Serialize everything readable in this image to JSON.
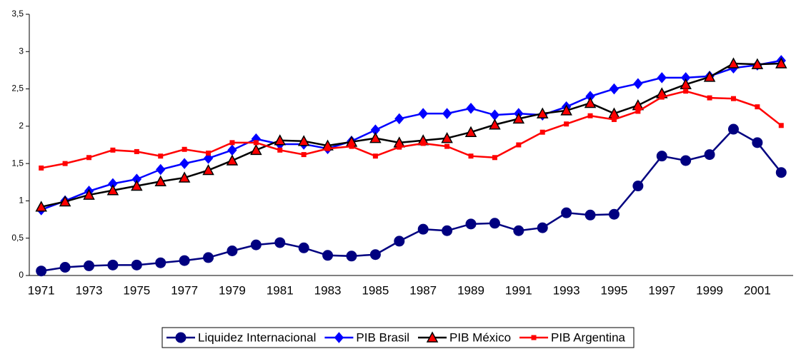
{
  "chart_data": {
    "type": "line",
    "categories": [
      "1971",
      null,
      "1973",
      null,
      "1975",
      null,
      "1977",
      null,
      "1979",
      null,
      "1981",
      null,
      "1983",
      null,
      "1985",
      null,
      "1987",
      null,
      "1989",
      null,
      "1991",
      null,
      "1993",
      null,
      "1995",
      null,
      "1997",
      null,
      "1999",
      null,
      "2001",
      null
    ],
    "series": [
      {
        "name": "Liquidez Internacional",
        "color": "#000080",
        "marker": "circle",
        "marker_fill": "#000080",
        "values": [
          0.06,
          0.11,
          0.13,
          0.14,
          0.14,
          0.17,
          0.2,
          0.24,
          0.33,
          0.41,
          0.44,
          0.37,
          0.27,
          0.26,
          0.28,
          0.46,
          0.62,
          0.6,
          0.69,
          0.7,
          0.6,
          0.64,
          0.84,
          0.81,
          0.82,
          1.2,
          1.6,
          1.54,
          1.62,
          1.96,
          1.78,
          1.38
        ]
      },
      {
        "name": "PIB Brasil",
        "color": "#0000ff",
        "marker": "diamond",
        "marker_fill": "#0000ff",
        "values": [
          0.88,
          1.0,
          1.13,
          1.23,
          1.29,
          1.42,
          1.5,
          1.57,
          1.68,
          1.83,
          1.76,
          1.76,
          1.7,
          1.8,
          1.95,
          2.1,
          2.17,
          2.17,
          2.24,
          2.15,
          2.17,
          2.15,
          2.26,
          2.4,
          2.5,
          2.57,
          2.65,
          2.65,
          2.67,
          2.78,
          2.82,
          2.88
        ]
      },
      {
        "name": "PIB México",
        "color": "#000000",
        "marker": "triangle",
        "marker_fill": "#ff0000",
        "values": [
          0.92,
          0.99,
          1.08,
          1.14,
          1.2,
          1.26,
          1.31,
          1.41,
          1.54,
          1.68,
          1.81,
          1.8,
          1.74,
          1.79,
          1.84,
          1.78,
          1.81,
          1.84,
          1.92,
          2.02,
          2.1,
          2.17,
          2.21,
          2.31,
          2.17,
          2.28,
          2.44,
          2.56,
          2.66,
          2.84,
          2.83,
          2.84
        ]
      },
      {
        "name": "PIB Argentina",
        "color": "#ff0000",
        "marker": "square",
        "marker_fill": "#ff0000",
        "values": [
          1.44,
          1.5,
          1.58,
          1.68,
          1.66,
          1.6,
          1.69,
          1.64,
          1.78,
          1.78,
          1.68,
          1.62,
          1.7,
          1.73,
          1.6,
          1.72,
          1.77,
          1.73,
          1.6,
          1.58,
          1.75,
          1.92,
          2.03,
          2.14,
          2.09,
          2.2,
          2.39,
          2.47,
          2.38,
          2.37,
          2.26,
          2.01
        ]
      }
    ],
    "ylim": [
      0,
      3.5
    ],
    "yticks": [
      0,
      {
        "value": 0.5,
        "label": "0,5"
      },
      1,
      {
        "value": 1.5,
        "label": "1,5"
      },
      2,
      {
        "value": 2.5,
        "label": "2,5"
      },
      3,
      {
        "value": 3.5,
        "label": "3,5"
      }
    ],
    "grid": false,
    "legend": "bottom"
  }
}
